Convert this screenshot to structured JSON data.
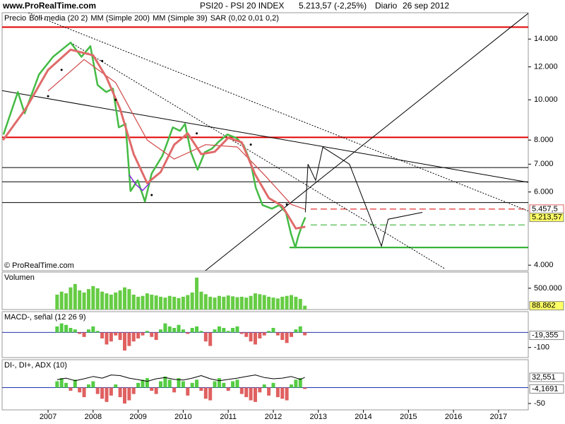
{
  "header": {
    "site": "www.ProRealTime.com",
    "instrument": "PSI20 - PSI 20 INDEX",
    "quote": "5.213,57 (-2,25%)",
    "period": "Diario",
    "date": "26 sep 2012"
  },
  "copyright": "© ProRealTime.com",
  "chart_data": [
    {
      "type": "line",
      "log_scale": true,
      "xlim": [
        2005.98,
        2017.66
      ],
      "ylim": [
        3880,
        16200
      ],
      "yticks": [
        {
          "value": 4000,
          "label": "4.000"
        },
        {
          "value": 6000,
          "label": "6.000"
        },
        {
          "value": 7000,
          "label": "7.000"
        },
        {
          "value": 8000,
          "label": "8.000"
        },
        {
          "value": 10000,
          "label": "10.000"
        },
        {
          "value": 12000,
          "label": "12.000"
        },
        {
          "value": 14000,
          "label": "14.000"
        }
      ],
      "series": [
        {
          "name": "Precio",
          "color": "#44bb44",
          "label_color": "#000000",
          "width": 2.5,
          "x": [
            2006.01,
            2006.33,
            2006.48,
            2006.8,
            2007.11,
            2007.5,
            2007.74,
            2007.94,
            2008.1,
            2008.29,
            2008.44,
            2008.57,
            2008.72,
            2008.83,
            2008.99,
            2009.15,
            2009.3,
            2009.54,
            2009.77,
            2009.93,
            2010.04,
            2010.17,
            2010.32,
            2010.48,
            2010.64,
            2010.79,
            2010.98,
            2011.18,
            2011.34,
            2011.5,
            2011.61,
            2011.76,
            2011.97,
            2012.13,
            2012.28,
            2012.39,
            2012.49,
            2012.55,
            2012.64,
            2012.71
          ],
          "values": [
            8250,
            10440,
            9280,
            11510,
            12690,
            13730,
            12690,
            13460,
            10850,
            10440,
            10640,
            8580,
            8750,
            6030,
            6400,
            5690,
            6650,
            7340,
            8580,
            8420,
            8750,
            7480,
            6790,
            7480,
            7630,
            7930,
            8250,
            8090,
            7780,
            7050,
            6150,
            5580,
            5470,
            5580,
            5360,
            4770,
            4410,
            4680,
            5000,
            5213.57
          ]
        },
        {
          "name": "Boll media (20 2)",
          "color": "#8a2be2",
          "label_color": "#8a2be2",
          "width": 1.5,
          "x": [
            2008.8,
            2008.95,
            2009.1,
            2009.25
          ],
          "values": [
            6600,
            6250,
            6050,
            6300
          ]
        },
        {
          "name": "MM (Simple 200)",
          "color": "#d04848",
          "label_color": "#d04848",
          "width": 1.2,
          "x": [
            2007.0,
            2007.8,
            2008.5,
            2009.2,
            2009.8,
            2010.5,
            2011.2,
            2011.8,
            2012.4,
            2012.71
          ],
          "values": [
            10500,
            12500,
            11000,
            8000,
            7200,
            7800,
            7700,
            6600,
            5600,
            5450
          ]
        },
        {
          "name": "MM (Simple 39)",
          "color": "#e06a6a",
          "label_color": "#d04848",
          "width": 3,
          "x": [
            2006.0,
            2006.5,
            2007.0,
            2007.5,
            2008.0,
            2008.3,
            2008.6,
            2008.9,
            2009.2,
            2009.5,
            2009.8,
            2010.1,
            2010.4,
            2010.7,
            2011.0,
            2011.3,
            2011.6,
            2011.9,
            2012.2,
            2012.5,
            2012.71
          ],
          "values": [
            8000,
            9500,
            11800,
            13200,
            12800,
            11300,
            9500,
            7400,
            6300,
            6700,
            7800,
            8300,
            7400,
            7500,
            8100,
            7900,
            6600,
            5800,
            5550,
            4900,
            4950
          ]
        },
        {
          "name": "SAR (0,02 0,01 0,2)",
          "color": "#000000",
          "label_color": "#000000",
          "width": 1,
          "style": "dots",
          "x": [
            2007.0,
            2007.3,
            2008.2,
            2008.5,
            2009.3,
            2010.3,
            2011.5,
            2012.3
          ],
          "values": [
            10200,
            11800,
            12400,
            10000,
            5900,
            8300,
            7800,
            5600
          ]
        }
      ],
      "levels": [
        {
          "value": 14960,
          "color": "#e00000",
          "width": 2
        },
        {
          "value": 8120,
          "color": "#e00000",
          "width": 2
        },
        {
          "value": 6870,
          "color": "#000000",
          "width": 1
        },
        {
          "value": 6350,
          "color": "#000000",
          "width": 1
        },
        {
          "value": 5660,
          "color": "#000000",
          "width": 1
        },
        {
          "value": 5457.5,
          "color": "#e00000",
          "width": 1,
          "dash": "9,5",
          "start": 2012.83
        },
        {
          "value": 5000,
          "color": "#22aa22",
          "width": 1,
          "dash": "9,5",
          "start": 2012.83
        },
        {
          "value": 4410,
          "color": "#22aa22",
          "width": 2,
          "start": 2012.36
        }
      ],
      "trendlines": [
        {
          "points": [
            [
              2010.48,
              3870
            ],
            [
              2017.66,
              16150
            ]
          ],
          "color": "#000000",
          "dash": ""
        },
        {
          "points": [
            [
              2005.98,
              10520
            ],
            [
              2017.66,
              6330
            ]
          ],
          "color": "#000000",
          "dash": ""
        },
        {
          "points": [
            [
              2006.56,
              16200
            ],
            [
              2017.66,
              5400
            ]
          ],
          "color": "#000000",
          "dash": "2,2"
        },
        {
          "points": [
            [
              2007.5,
              13730
            ],
            [
              2015.81,
              3920
            ]
          ],
          "color": "#000000",
          "dash": "2,2"
        },
        {
          "points": [
            [
              2012.71,
              5360
            ],
            [
              2012.77,
              7000
            ],
            [
              2012.94,
              6400
            ],
            [
              2013.1,
              7690
            ],
            [
              2013.69,
              7000
            ],
            [
              2014.4,
              4445
            ],
            [
              2014.55,
              5160
            ],
            [
              2015.31,
              5360
            ]
          ],
          "color": "#000000",
          "dash": ""
        }
      ],
      "value_boxes": [
        {
          "value": 5457.5,
          "label": "5.457,5",
          "bg": "#ffffff",
          "border": "#e06060"
        },
        {
          "value": 5213.57,
          "label": "5.213,57",
          "bg": "#ffff66",
          "border": "#888888"
        }
      ]
    },
    {
      "type": "bar",
      "title": "Volumen",
      "xlim": [
        2005.98,
        2017.66
      ],
      "ylim": [
        0,
        880000
      ],
      "yticks": [
        {
          "value": 500000,
          "label": "500.000"
        }
      ],
      "color": "#66cc44",
      "x": [
        2007.2,
        2007.3,
        2007.4,
        2007.5,
        2007.6,
        2007.7,
        2007.8,
        2007.9,
        2008.0,
        2008.1,
        2008.2,
        2008.3,
        2008.4,
        2008.5,
        2008.6,
        2008.7,
        2008.8,
        2008.9,
        2009.0,
        2009.1,
        2009.2,
        2009.3,
        2009.4,
        2009.5,
        2009.6,
        2009.7,
        2009.8,
        2009.9,
        2010.0,
        2010.1,
        2010.2,
        2010.3,
        2010.4,
        2010.5,
        2010.6,
        2010.7,
        2010.8,
        2010.9,
        2011.0,
        2011.1,
        2011.2,
        2011.3,
        2011.4,
        2011.5,
        2011.6,
        2011.7,
        2011.8,
        2011.9,
        2012.0,
        2012.1,
        2012.2,
        2012.3,
        2012.4,
        2012.5,
        2012.6,
        2012.7
      ],
      "values": [
        350000,
        420000,
        380000,
        520000,
        600000,
        450000,
        400000,
        480000,
        550000,
        500000,
        420000,
        380000,
        350000,
        400000,
        450000,
        520000,
        480000,
        350000,
        300000,
        320000,
        380000,
        350000,
        330000,
        300000,
        280000,
        320000,
        300000,
        270000,
        300000,
        340000,
        400000,
        750000,
        420000,
        360000,
        300000,
        280000,
        320000,
        300000,
        330000,
        310000,
        290000,
        300000,
        280000,
        320000,
        380000,
        360000,
        340000,
        300000,
        280000,
        260000,
        300000,
        320000,
        340000,
        300000,
        250000,
        88862
      ],
      "value_boxes": [
        {
          "value": 88862,
          "label": "88.862",
          "bg": "#ffff66",
          "border": "#888888"
        }
      ]
    },
    {
      "type": "bar",
      "title": "MACD-, señal (12 26 9)",
      "xlim": [
        2005.98,
        2017.66
      ],
      "ylim": [
        -167,
        138
      ],
      "yticks": [
        -100
      ],
      "zero_color": "#2233aa",
      "pos_color": "#55cc44",
      "neg_color": "#e06060",
      "x": [
        2007.2,
        2007.3,
        2007.4,
        2007.5,
        2007.6,
        2007.7,
        2007.8,
        2007.9,
        2008.0,
        2008.1,
        2008.2,
        2008.3,
        2008.4,
        2008.5,
        2008.6,
        2008.7,
        2008.8,
        2008.9,
        2009.0,
        2009.1,
        2009.2,
        2009.3,
        2009.4,
        2009.5,
        2009.6,
        2009.7,
        2009.8,
        2009.9,
        2010.0,
        2010.1,
        2010.2,
        2010.3,
        2010.4,
        2010.5,
        2010.6,
        2010.7,
        2010.8,
        2010.9,
        2011.0,
        2011.1,
        2011.2,
        2011.3,
        2011.4,
        2011.5,
        2011.6,
        2011.7,
        2011.8,
        2011.9,
        2012.0,
        2012.1,
        2012.2,
        2012.3,
        2012.4,
        2012.5,
        2012.6,
        2012.7
      ],
      "values": [
        40,
        60,
        50,
        30,
        20,
        -10,
        -30,
        20,
        40,
        10,
        -40,
        -80,
        -60,
        -20,
        -50,
        -120,
        -90,
        -60,
        -40,
        -20,
        10,
        -30,
        -50,
        20,
        60,
        40,
        30,
        50,
        20,
        -10,
        30,
        40,
        10,
        -60,
        -90,
        20,
        40,
        30,
        10,
        30,
        40,
        -10,
        -30,
        -60,
        -80,
        -40,
        -20,
        10,
        30,
        -20,
        -50,
        -70,
        -30,
        20,
        40,
        -19.355
      ],
      "value_boxes": [
        {
          "value": -19.355,
          "label": "-19,355",
          "bg": "#ffffff",
          "border": "#888888"
        }
      ]
    },
    {
      "type": "bar",
      "title": "DI-, DI+, ADX (10)",
      "xlim": [
        2005.98,
        2017.66
      ],
      "ylim": [
        -70,
        88
      ],
      "yticks": [
        -50
      ],
      "zero_color": "#2233aa",
      "pos_color": "#55cc44",
      "neg_color": "#e06060",
      "x": [
        2007.2,
        2007.3,
        2007.4,
        2007.5,
        2007.6,
        2007.7,
        2007.8,
        2007.9,
        2008.0,
        2008.1,
        2008.2,
        2008.3,
        2008.4,
        2008.5,
        2008.6,
        2008.7,
        2008.8,
        2008.9,
        2009.0,
        2009.1,
        2009.2,
        2009.3,
        2009.4,
        2009.5,
        2009.6,
        2009.7,
        2009.8,
        2009.9,
        2010.0,
        2010.1,
        2010.2,
        2010.3,
        2010.4,
        2010.5,
        2010.6,
        2010.7,
        2010.8,
        2010.9,
        2011.0,
        2011.1,
        2011.2,
        2011.3,
        2011.4,
        2011.5,
        2011.6,
        2011.7,
        2011.8,
        2011.9,
        2012.0,
        2012.1,
        2012.2,
        2012.3,
        2012.4,
        2012.5,
        2012.6,
        2012.7
      ],
      "values": [
        20,
        30,
        15,
        -10,
        25,
        -15,
        -30,
        10,
        20,
        -20,
        -35,
        -45,
        -25,
        10,
        -30,
        -50,
        -40,
        -20,
        15,
        25,
        30,
        -10,
        -20,
        20,
        35,
        25,
        -15,
        30,
        20,
        -25,
        15,
        25,
        -10,
        -35,
        -40,
        20,
        30,
        15,
        -10,
        20,
        25,
        -20,
        -30,
        -40,
        -45,
        -15,
        10,
        -25,
        15,
        -30,
        -35,
        -40,
        10,
        25,
        30,
        -4.1691
      ],
      "line_color": "#000000",
      "line_x": [
        2007.2,
        2007.4,
        2007.6,
        2007.8,
        2008.0,
        2008.2,
        2008.4,
        2008.6,
        2008.8,
        2009.0,
        2009.2,
        2009.4,
        2009.6,
        2009.8,
        2010.0,
        2010.2,
        2010.4,
        2010.6,
        2010.8,
        2011.0,
        2011.2,
        2011.4,
        2011.6,
        2011.8,
        2012.0,
        2012.2,
        2012.4,
        2012.6,
        2012.7
      ],
      "line_values": [
        25,
        30,
        22,
        28,
        35,
        30,
        40,
        38,
        30,
        25,
        20,
        28,
        32,
        26,
        24,
        30,
        38,
        28,
        22,
        26,
        30,
        35,
        40,
        32,
        28,
        30,
        35,
        26,
        32.551
      ],
      "xticks": [
        2007,
        2008,
        2009,
        2010,
        2011,
        2012,
        2013,
        2014,
        2015,
        2016,
        2017
      ],
      "value_boxes": [
        {
          "value": 32.551,
          "label": "32,551",
          "bg": "#ffffff",
          "border": "#888888"
        },
        {
          "value": -4.1691,
          "label": "-4,1691",
          "bg": "#ffffff",
          "border": "#888888"
        }
      ]
    }
  ]
}
